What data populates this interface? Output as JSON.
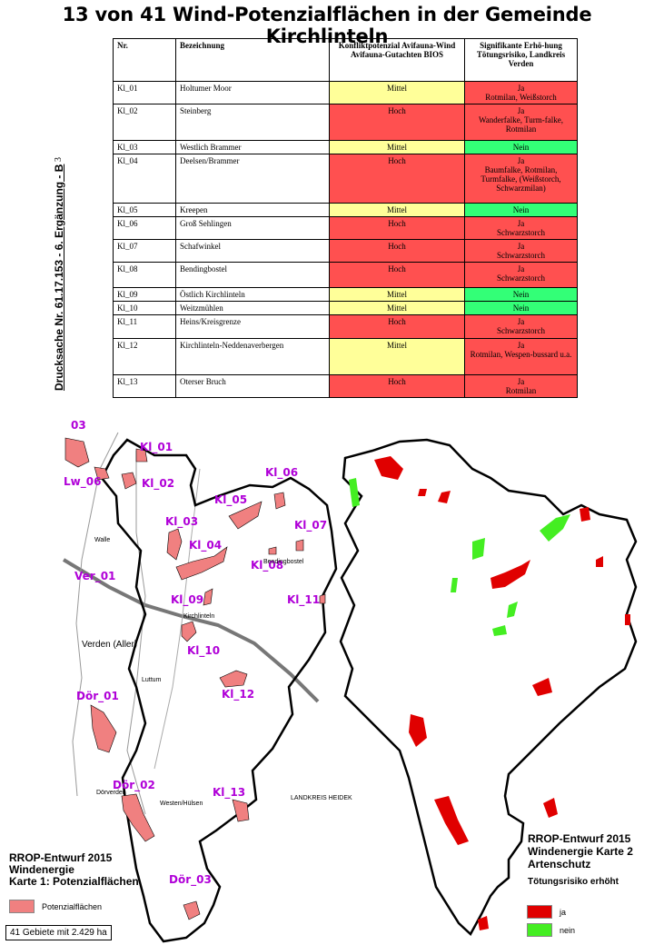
{
  "title": "13 von 41 Wind-Potenzialflächen in der Gemeinde Kirchlinteln",
  "side_note": "Drucksache Nr. 61.17.153 - 6. Ergänzung - B",
  "side_page_num": "3",
  "table": {
    "headers": {
      "nr": "Nr.",
      "bezeichnung": "Bezeichnung",
      "konflikt": "Konfliktpotenzial Avifauna-Wind Avifauna-Gutachten BIOS",
      "risiko": "Signifikante Erhö-hung Tötungsrisiko, Landkreis Verden"
    },
    "rows": [
      {
        "nr": "Kl_01",
        "name": "Holtumer Moor",
        "konflikt": "Mittel",
        "risiko": "Ja",
        "detail": "Rotmilan, Weißstorch"
      },
      {
        "nr": "Kl_02",
        "name": "Steinberg",
        "konflikt": "Hoch",
        "risiko": "Ja",
        "detail": "Wanderfalke, Turm-falke, Rotmilan"
      },
      {
        "nr": "Kl_03",
        "name": "Westlich Brammer",
        "konflikt": "Mittel",
        "risiko": "Nein",
        "detail": ""
      },
      {
        "nr": "Kl_04",
        "name": "Deelsen/Brammer",
        "konflikt": "Hoch",
        "risiko": "Ja",
        "detail": "Baumfalke, Rotmilan, Turmfalke, (Weißstorch, Schwarzmilan)"
      },
      {
        "nr": "Kl_05",
        "name": "Kreepen",
        "konflikt": "Mittel",
        "risiko": "Nein",
        "detail": ""
      },
      {
        "nr": "Kl_06",
        "name": "Groß Sehlingen",
        "konflikt": "Hoch",
        "risiko": "Ja",
        "detail": "Schwarzstorch"
      },
      {
        "nr": "Kl_07",
        "name": "Schafwinkel",
        "konflikt": "Hoch",
        "risiko": "Ja",
        "detail": "Schwarzstorch"
      },
      {
        "nr": "Kl_08",
        "name": "Bendingbostel",
        "konflikt": "Hoch",
        "risiko": "Ja",
        "detail": "Schwarzstorch"
      },
      {
        "nr": "Kl_09",
        "name": "Östlich Kirchlinteln",
        "konflikt": "Mittel",
        "risiko": "Nein",
        "detail": ""
      },
      {
        "nr": "Kl_10",
        "name": "Weitzmühlen",
        "konflikt": "Mittel",
        "risiko": "Nein",
        "detail": ""
      },
      {
        "nr": "Kl_11",
        "name": "Heins/Kreisgrenze",
        "konflikt": "Hoch",
        "risiko": "Ja",
        "detail": "Schwarzstorch"
      },
      {
        "nr": "Kl_12",
        "name": "Kirchlinteln-Neddenaverbergen",
        "konflikt": "Mittel",
        "risiko": "Ja",
        "detail": "Rotmilan, Wespen-bussard u.a."
      },
      {
        "nr": "Kl_13",
        "name": "Oterser Bruch",
        "konflikt": "Hoch",
        "risiko": "Ja",
        "detail": "Rotmilan"
      }
    ]
  },
  "colors": {
    "hoch": "#ff5050",
    "mittel": "#ffff99",
    "ja": "#ff5050",
    "nein": "#33ff77",
    "potenzial_fill": "#f08080",
    "map_ja": "#e00000",
    "map_nein": "#44ee22"
  },
  "map1": {
    "area_labels": [
      "03",
      "Lw_06",
      "Kl_01",
      "Kl_02",
      "Kl_06",
      "Kl_05",
      "Kl_03",
      "Kl_07",
      "Kl_04",
      "Kl_08",
      "Ver_01",
      "Kl_09",
      "Kl_11",
      "Kl_10",
      "Kl_12",
      "Dör_01",
      "Dör_02",
      "Kl_13",
      "Dör_03"
    ],
    "towns": [
      "Walle",
      "Bendingbostel",
      "Kirchlinteln",
      "Luttum",
      "Dörverden",
      "Westen/Hülsen",
      "LANDKREIS HEIDEK"
    ],
    "city": "Verden (Aller)",
    "legend_title": [
      "RROP-Entwurf 2015",
      "Windenergie",
      "Karte 1: Potenzialflächen"
    ],
    "legend_item": "Potenzialflächen",
    "count_text": "41 Gebiete mit 2.429 ha"
  },
  "map2": {
    "legend_title": [
      "RROP-Entwurf 2015",
      "Windenergie Karte 2",
      "Artenschutz"
    ],
    "legend_subtitle": "Tötungsrisiko erhöht",
    "legend_ja": "ja",
    "legend_nein": "nein"
  }
}
